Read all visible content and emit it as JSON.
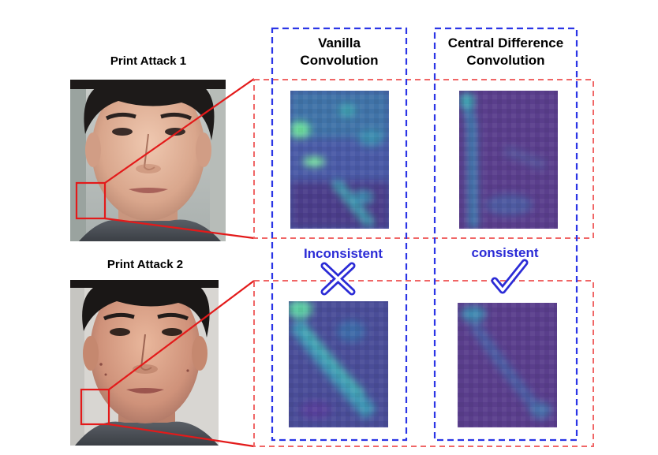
{
  "rows": [
    {
      "label": "Print Attack 1"
    },
    {
      "label": "Print Attack 2"
    }
  ],
  "columns": [
    {
      "title_line1": "Vanilla",
      "title_line2": "Convolution",
      "verdict": "Inconsistent",
      "verdict_symbol": "cross-icon"
    },
    {
      "title_line1": "Central Difference",
      "title_line2": "Convolution",
      "verdict": "consistent",
      "verdict_symbol": "check-icon"
    }
  ],
  "colors": {
    "column_box": "#2b35e6",
    "row_box": "#f06666",
    "zoom_lines": "#e31a1a",
    "verdict_text": "#2b2bd6",
    "heatmap_low": "#4b2a7a",
    "heatmap_mid": "#3d7fa6",
    "heatmap_high": "#5fdc9a"
  }
}
